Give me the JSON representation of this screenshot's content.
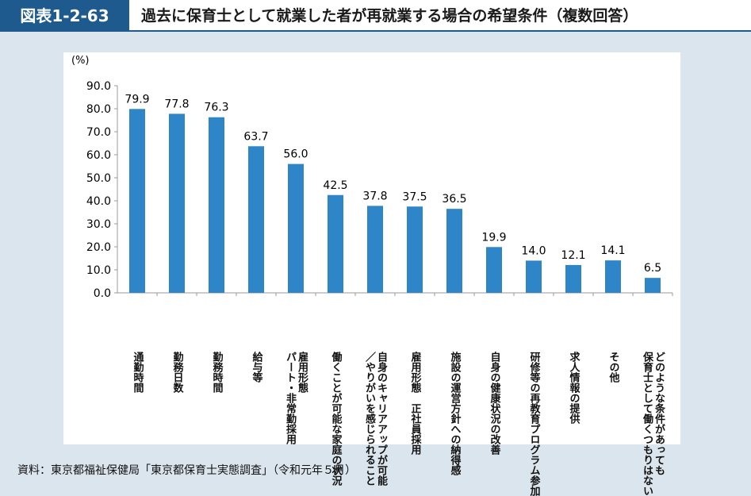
{
  "header": {
    "figure_no": "図表1-2-63",
    "title": "過去に保育士として就業した者が再就業する場合の希望条件（複数回答）"
  },
  "source": "資料：東京都福祉保健局「東京都保育士実態調査」（令和元年５月）",
  "colors": {
    "bar": "#2e86c9",
    "header": "#1e5a8e"
  },
  "chart_data": {
    "type": "bar",
    "ylabel": "(%)",
    "ylim": [
      0,
      90
    ],
    "yticks": [
      "0.0",
      "10.0",
      "20.0",
      "30.0",
      "40.0",
      "50.0",
      "60.0",
      "70.0",
      "80.0",
      "90.0"
    ],
    "categories": [
      "通勤時間",
      "勤務日数",
      "勤務時間",
      "給与等",
      "雇用形態\nパート・非常勤採用",
      "働くことが可能な家庭の状況",
      "自身のキャリアアップが可能\n／やりがいを感じられること",
      "雇用形態　正社員採用",
      "施設の運営方針への納得感",
      "自身の健康状況の改善",
      "研修等の再教育プログラム参加",
      "求人情報の提供",
      "その他",
      "どのような条件があっても\n保育士として働くつもりはない"
    ],
    "values": [
      79.9,
      77.8,
      76.3,
      63.7,
      56.0,
      42.5,
      37.8,
      37.5,
      36.5,
      19.9,
      14.0,
      12.1,
      14.1,
      6.5
    ],
    "labels": [
      "79.9",
      "77.8",
      "76.3",
      "63.7",
      "56.0",
      "42.5",
      "37.8",
      "37.5",
      "36.5",
      "19.9",
      "14.0",
      "12.1",
      "14.1",
      "6.5"
    ]
  }
}
